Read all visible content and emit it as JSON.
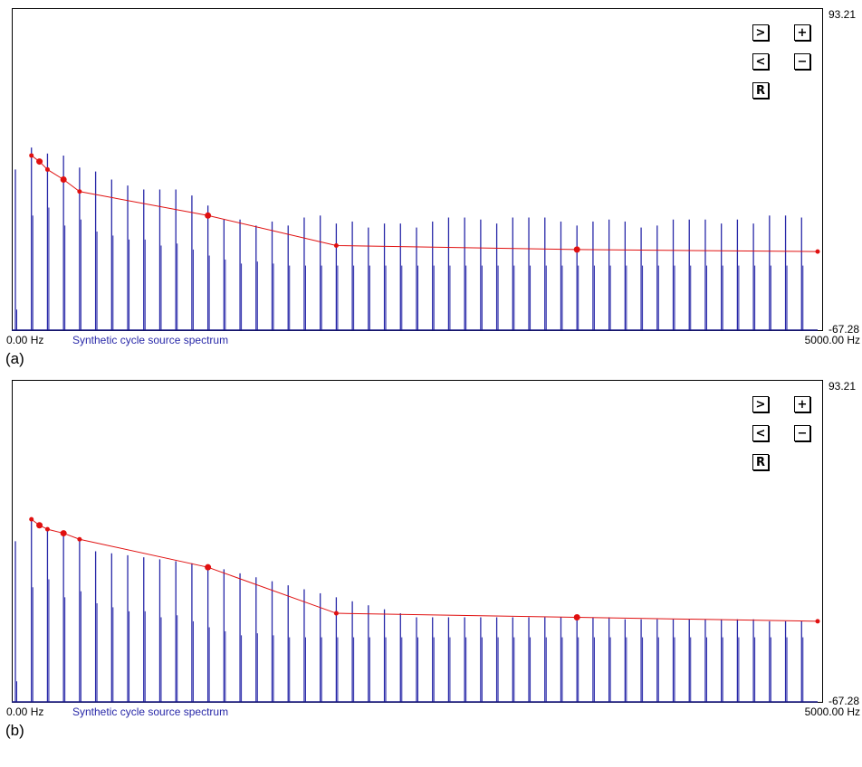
{
  "panels": [
    {
      "label": "(a)",
      "title": "Synthetic cycle source spectrum",
      "x_min_label": "0.00 Hz",
      "x_max_label": "5000.00 Hz",
      "y_max_label": "93.21",
      "y_min_label": "-67.28",
      "buttons": {
        "next": ">",
        "prev": "<",
        "reset": "R",
        "zoom_in": "+",
        "zoom_out": "−"
      }
    },
    {
      "label": "(b)",
      "title": "Synthetic cycle source spectrum",
      "x_min_label": "0.00 Hz",
      "x_max_label": "5000.00 Hz",
      "y_max_label": "93.21",
      "y_min_label": "-67.28",
      "buttons": {
        "next": ">",
        "prev": "<",
        "reset": "R",
        "zoom_in": "+",
        "zoom_out": "−"
      }
    }
  ],
  "chart_data": [
    {
      "type": "bar",
      "title": "Synthetic cycle source spectrum",
      "xlim_hz": [
        0,
        5000
      ],
      "ylim": [
        -67.28,
        93.21
      ],
      "colors": {
        "harmonic": "#2828a8",
        "envelope": "#e01010"
      },
      "harmonics": {
        "x_hz": [
          0,
          100,
          200,
          300,
          400,
          500,
          600,
          700,
          800,
          900,
          1000,
          1100,
          1200,
          1300,
          1400,
          1500,
          1600,
          1700,
          1800,
          1900,
          2000,
          2100,
          2200,
          2300,
          2400,
          2500,
          2600,
          2700,
          2800,
          2900,
          3000,
          3100,
          3200,
          3300,
          3400,
          3500,
          3600,
          3700,
          3800,
          3900,
          4000,
          4100,
          4200,
          4300,
          4400,
          4500,
          4600,
          4700,
          4800,
          4900
        ],
        "values": [
          13,
          24,
          21,
          20,
          14,
          12,
          8,
          5,
          3,
          3,
          3,
          0,
          -5,
          -12,
          -12,
          -15,
          -13,
          -15,
          -11,
          -10,
          -14,
          -13,
          -16,
          -14,
          -14,
          -16,
          -13,
          -11,
          -11,
          -12,
          -14,
          -11,
          -11,
          -11,
          -13,
          -15,
          -13,
          -12,
          -13,
          -16,
          -15,
          -12,
          -12,
          -12,
          -14,
          -12,
          -14,
          -10,
          -10,
          -11
        ],
        "secondary_values": [
          -57,
          -10,
          -6,
          -15,
          -12,
          -18,
          -20,
          -22,
          -22,
          -25,
          -24,
          -27,
          -30,
          -32,
          -34,
          -33,
          -34,
          -35,
          -35,
          -35,
          -35,
          -35,
          -35,
          -35,
          -35,
          -35,
          -35,
          -35,
          -35,
          -35,
          -35,
          -35,
          -35,
          -35,
          -35,
          -35,
          -35,
          -35,
          -35,
          -35,
          -35,
          -35,
          -35,
          -35,
          -35,
          -35,
          -35,
          -35,
          -35,
          -35
        ]
      },
      "envelope": {
        "x_hz": [
          100,
          150,
          200,
          300,
          400,
          1200,
          2000,
          3500,
          5000
        ],
        "y": [
          20,
          17,
          13,
          8,
          2,
          -10,
          -25,
          -27,
          -28
        ]
      }
    },
    {
      "type": "bar",
      "title": "Synthetic cycle source spectrum",
      "xlim_hz": [
        0,
        5000
      ],
      "ylim": [
        -67.28,
        93.21
      ],
      "colors": {
        "harmonic": "#2828a8",
        "envelope": "#e01010"
      },
      "harmonics": {
        "x_hz": [
          0,
          100,
          200,
          300,
          400,
          500,
          600,
          700,
          800,
          900,
          1000,
          1100,
          1200,
          1300,
          1400,
          1500,
          1600,
          1700,
          1800,
          1900,
          2000,
          2100,
          2200,
          2300,
          2400,
          2500,
          2600,
          2700,
          2800,
          2900,
          3000,
          3100,
          3200,
          3300,
          3400,
          3500,
          3600,
          3700,
          3800,
          3900,
          4000,
          4100,
          4200,
          4300,
          4400,
          4500,
          4600,
          4700,
          4800,
          4900
        ],
        "values": [
          13,
          24,
          20,
          17,
          13,
          8,
          7,
          6,
          5,
          4,
          3,
          2,
          0,
          -1,
          -3,
          -5,
          -7,
          -9,
          -11,
          -13,
          -15,
          -17,
          -19,
          -21,
          -23,
          -25,
          -25,
          -25,
          -25,
          -25,
          -25,
          -25,
          -25,
          -25,
          -25,
          -25,
          -25,
          -25,
          -26,
          -26,
          -26,
          -26,
          -26,
          -26,
          -26,
          -26,
          -26,
          -27,
          -27,
          -27
        ],
        "secondary_values": [
          -57,
          -10,
          -6,
          -15,
          -12,
          -18,
          -20,
          -22,
          -22,
          -25,
          -24,
          -27,
          -30,
          -32,
          -34,
          -33,
          -34,
          -35,
          -35,
          -35,
          -35,
          -35,
          -35,
          -35,
          -35,
          -35,
          -35,
          -35,
          -35,
          -35,
          -35,
          -35,
          -35,
          -35,
          -35,
          -35,
          -35,
          -35,
          -35,
          -35,
          -35,
          -35,
          -35,
          -35,
          -35,
          -35,
          -35,
          -35,
          -35,
          -35
        ]
      },
      "envelope": {
        "x_hz": [
          100,
          150,
          200,
          300,
          400,
          1200,
          2000,
          3500,
          5000
        ],
        "y": [
          24,
          21,
          19,
          17,
          14,
          0,
          -23,
          -25,
          -27
        ]
      }
    }
  ]
}
